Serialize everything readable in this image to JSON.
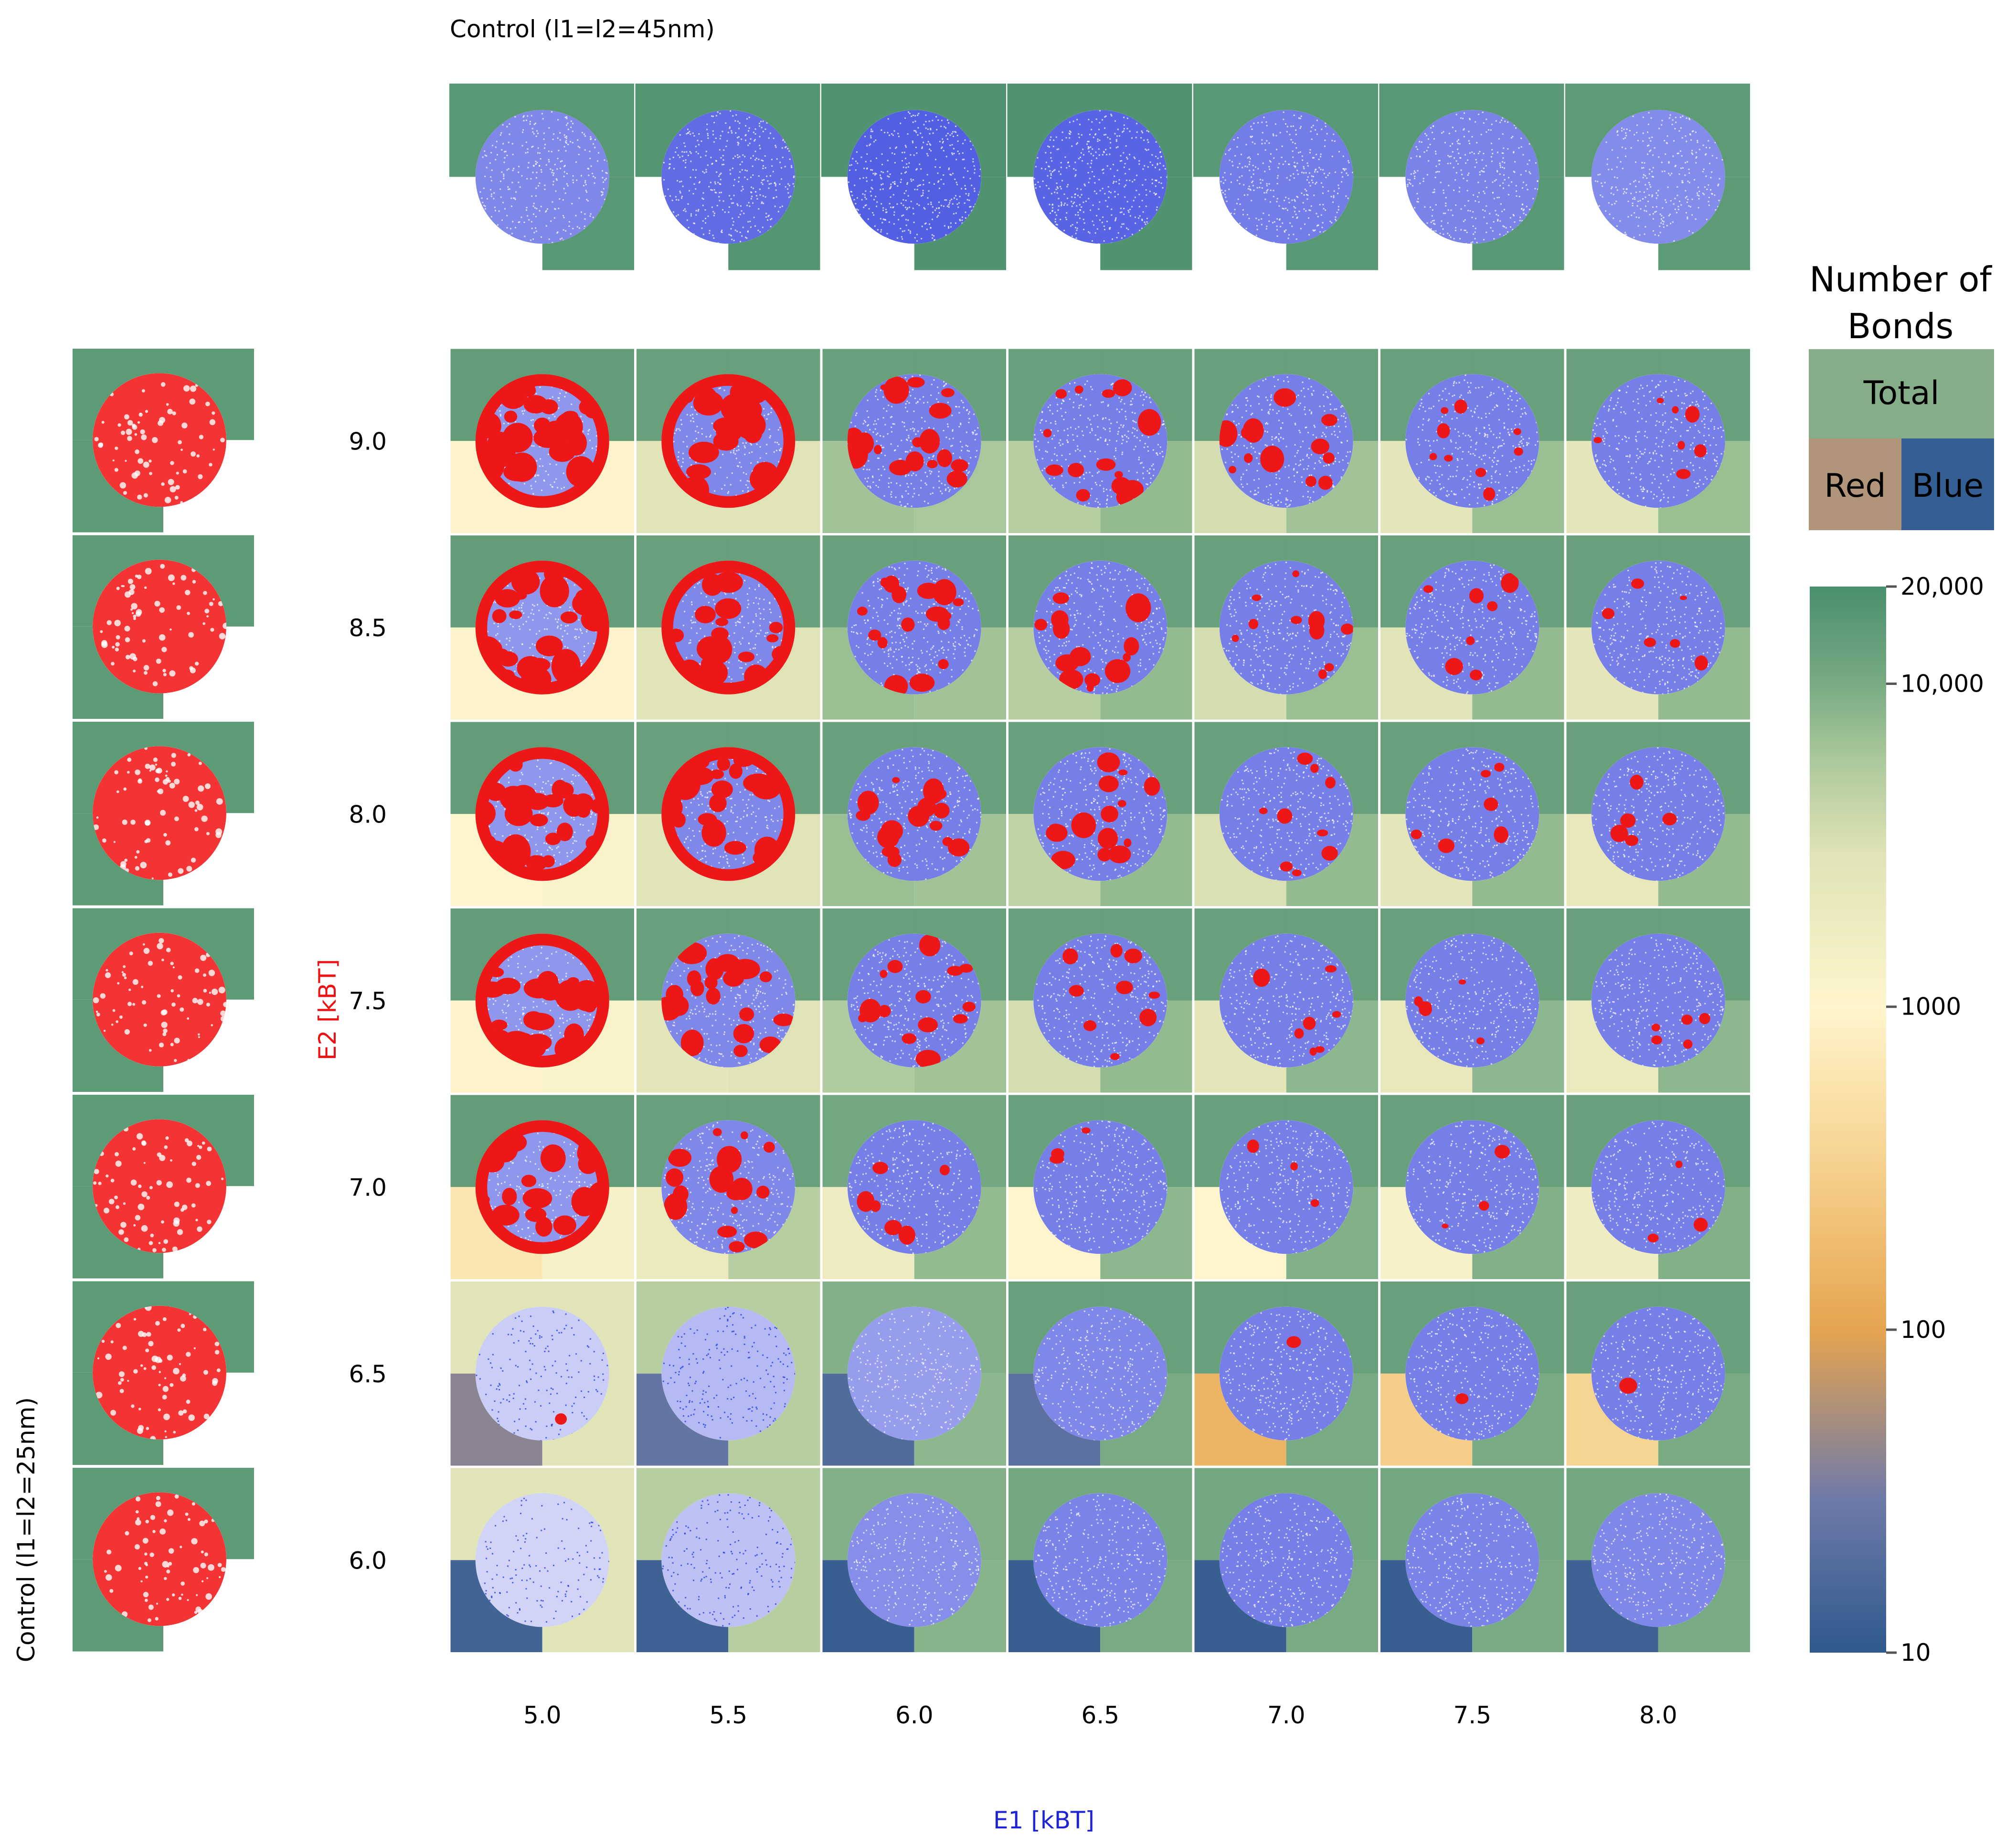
{
  "chart_data": {
    "type": "heatmap",
    "title_top": "Control (l1=l2=45nm)",
    "title_left": "Control (l1=l2=25nm)",
    "xlabel": "E1  [kBT]",
    "ylabel": "E2  [kBT]",
    "x": [
      "5.0",
      "5.5",
      "6.0",
      "6.5",
      "7.0",
      "7.5",
      "8.0"
    ],
    "y": [
      "9.0",
      "8.5",
      "8.0",
      "7.5",
      "7.0",
      "6.5",
      "6.0"
    ],
    "legend": {
      "title_line1": "Number of",
      "title_line2": "Bonds",
      "total_label": "Total",
      "red_label": "Red",
      "blue_label": "Blue"
    },
    "colorbar": {
      "scale": "log",
      "range": [
        10,
        20000
      ],
      "ticks": [
        {
          "value": 20000,
          "label": "20,000"
        },
        {
          "value": 10000,
          "label": "10,000"
        },
        {
          "value": 1000,
          "label": "1000"
        },
        {
          "value": 100,
          "label": "100"
        },
        {
          "value": 10,
          "label": "10"
        }
      ],
      "stops": [
        {
          "value": 10,
          "color": "#2e5a8c"
        },
        {
          "value": 30,
          "color": "#6f7aa8"
        },
        {
          "value": 100,
          "color": "#e6a450"
        },
        {
          "value": 300,
          "color": "#f5cf8a"
        },
        {
          "value": 1000,
          "color": "#fff5cc"
        },
        {
          "value": 3000,
          "color": "#dfe3b5"
        },
        {
          "value": 6000,
          "color": "#a9c79a"
        },
        {
          "value": 10000,
          "color": "#78ab84"
        },
        {
          "value": 20000,
          "color": "#4a8f6c"
        }
      ]
    },
    "control_top": {
      "total": [
        16000,
        17000,
        18000,
        18000,
        16000,
        16000,
        15000
      ],
      "blue_density": [
        0.55,
        0.72,
        0.8,
        0.78,
        0.62,
        0.58,
        0.52
      ]
    },
    "control_left": {
      "total": [
        15000,
        15000,
        15000,
        15000,
        15000,
        15000,
        15000
      ]
    },
    "grid": {
      "total": [
        [
          14000,
          13000,
          13000,
          13000,
          13000,
          13000,
          13000
        ],
        [
          14000,
          13000,
          13000,
          13000,
          13000,
          13000,
          13000
        ],
        [
          14000,
          13000,
          13000,
          13000,
          13000,
          13000,
          13000
        ],
        [
          14000,
          13000,
          13000,
          13000,
          13000,
          13000,
          13000
        ],
        [
          14000,
          13000,
          11000,
          13000,
          13000,
          13000,
          13000
        ],
        [
          2800,
          5000,
          9000,
          13000,
          13000,
          13000,
          13000
        ],
        [
          2800,
          5000,
          9000,
          11000,
          11000,
          11000,
          11000
        ]
      ],
      "red": [
        [
          1100,
          2800,
          6500,
          5000,
          3500,
          2500,
          2500
        ],
        [
          1100,
          2800,
          7000,
          5000,
          3500,
          2800,
          2500
        ],
        [
          1000,
          2800,
          7000,
          4500,
          3200,
          2500,
          2200
        ],
        [
          1100,
          2500,
          5500,
          3500,
          2500,
          2200,
          2000
        ],
        [
          600,
          2000,
          1800,
          1000,
          1000,
          1300,
          1700
        ],
        [
          40,
          25,
          18,
          22,
          150,
          300,
          350
        ],
        [
          14,
          13,
          12,
          12,
          12,
          12,
          13
        ]
      ],
      "blue": [
        [
          1100,
          3000,
          6000,
          7500,
          6500,
          7000,
          7000
        ],
        [
          1100,
          3000,
          6500,
          7500,
          7000,
          7500,
          7500
        ],
        [
          1200,
          3000,
          6500,
          7500,
          7500,
          7500,
          7500
        ],
        [
          1200,
          3000,
          6500,
          7500,
          8000,
          8000,
          8000
        ],
        [
          1300,
          5000,
          7500,
          8000,
          9000,
          9000,
          9000
        ],
        [
          2800,
          5000,
          8000,
          10000,
          10000,
          10000,
          10000
        ],
        [
          2800,
          5000,
          8500,
          10000,
          10000,
          10000,
          10000
        ]
      ],
      "red_fraction": [
        [
          0.72,
          0.62,
          0.5,
          0.45,
          0.35,
          0.25,
          0.2
        ],
        [
          0.7,
          0.6,
          0.48,
          0.42,
          0.3,
          0.22,
          0.18
        ],
        [
          0.68,
          0.58,
          0.45,
          0.4,
          0.26,
          0.18,
          0.15
        ],
        [
          0.65,
          0.55,
          0.42,
          0.25,
          0.2,
          0.15,
          0.14
        ],
        [
          0.6,
          0.5,
          0.18,
          0.08,
          0.09,
          0.09,
          0.1
        ],
        [
          0.004,
          0.0,
          0.0,
          0.0,
          0.01,
          0.03,
          0.03
        ],
        [
          0.0,
          0.0,
          0.0,
          0.0,
          0.0,
          0.0,
          0.0
        ]
      ],
      "blue_density": [
        [
          0.45,
          0.55,
          0.6,
          0.6,
          0.6,
          0.6,
          0.6
        ],
        [
          0.45,
          0.55,
          0.6,
          0.6,
          0.6,
          0.6,
          0.6
        ],
        [
          0.45,
          0.55,
          0.6,
          0.6,
          0.6,
          0.6,
          0.6
        ],
        [
          0.45,
          0.55,
          0.6,
          0.6,
          0.6,
          0.6,
          0.6
        ],
        [
          0.45,
          0.55,
          0.6,
          0.6,
          0.6,
          0.6,
          0.6
        ],
        [
          0.1,
          0.22,
          0.42,
          0.55,
          0.6,
          0.6,
          0.6
        ],
        [
          0.06,
          0.18,
          0.5,
          0.58,
          0.6,
          0.58,
          0.55
        ]
      ]
    }
  }
}
